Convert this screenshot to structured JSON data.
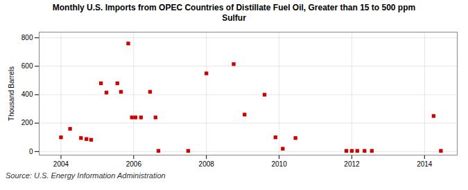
{
  "chart_data": {
    "type": "scatter",
    "title": "Monthly U.S. Imports from OPEC Countries of Distillate Fuel Oil, Greater than 15 to 500 ppm\nSulfur",
    "ylabel": "Thousand Barrels",
    "annotations": [
      "Source: U.S. Energy Information Administration"
    ],
    "x": [
      2004.0,
      2004.25,
      2004.55,
      2004.7,
      2004.83,
      2005.1,
      2005.25,
      2005.55,
      2005.65,
      2005.85,
      2005.95,
      2006.05,
      2006.2,
      2006.45,
      2006.6,
      2006.68,
      2007.5,
      2008.0,
      2008.75,
      2009.05,
      2009.6,
      2009.9,
      2010.1,
      2010.45,
      2011.85,
      2012.0,
      2012.15,
      2012.35,
      2012.55,
      2014.25,
      2014.45
    ],
    "values": [
      100,
      160,
      95,
      88,
      83,
      480,
      415,
      480,
      420,
      760,
      240,
      240,
      240,
      420,
      240,
      5,
      5,
      550,
      615,
      260,
      400,
      100,
      20,
      95,
      5,
      5,
      5,
      5,
      5,
      250,
      5
    ],
    "color": "#cc0000",
    "marker": "square",
    "xlim": [
      2003.4,
      2014.9
    ],
    "ylim": [
      -25,
      840
    ],
    "xticks": [
      2004,
      2006,
      2008,
      2010,
      2012,
      2014
    ],
    "yticks": [
      0,
      200,
      400,
      600,
      800
    ],
    "grid": true
  }
}
